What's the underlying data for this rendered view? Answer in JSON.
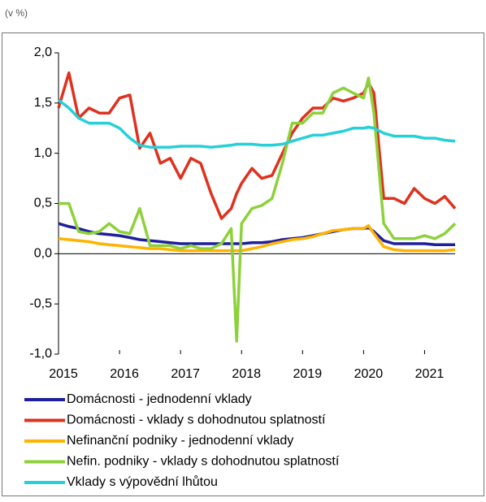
{
  "chart_data": {
    "type": "line",
    "unit_label": "(v %)",
    "x": [
      2015,
      2015.17,
      2015.33,
      2015.5,
      2015.67,
      2015.83,
      2016,
      2016.17,
      2016.33,
      2016.5,
      2016.67,
      2016.83,
      2017,
      2017.17,
      2017.33,
      2017.5,
      2017.67,
      2017.83,
      2017.92,
      2018,
      2018.17,
      2018.33,
      2018.5,
      2018.67,
      2018.83,
      2019,
      2019.17,
      2019.33,
      2019.5,
      2019.67,
      2019.83,
      2020,
      2020.08,
      2020.17,
      2020.33,
      2020.5,
      2020.67,
      2020.83,
      2021,
      2021.17,
      2021.33,
      2021.5
    ],
    "xlim": [
      2015,
      2021.5
    ],
    "xticks": [
      2015,
      2016,
      2017,
      2018,
      2019,
      2020,
      2021
    ],
    "ylim": [
      -1,
      2
    ],
    "yticks": [
      {
        "value": -1,
        "label": "-1,0"
      },
      {
        "value": -0.5,
        "label": "-0,5"
      },
      {
        "value": 0,
        "label": "0,0"
      },
      {
        "value": 0.5,
        "label": "0,5"
      },
      {
        "value": 1,
        "label": "1,0"
      },
      {
        "value": 1.5,
        "label": "1,5"
      },
      {
        "value": 2,
        "label": "2,0"
      }
    ],
    "grid": false,
    "legend": "bottom",
    "series": [
      {
        "name": "Domácnosti - jednodenní vklady",
        "color": "#1f1f9e",
        "values": [
          0.3,
          0.27,
          0.25,
          0.22,
          0.2,
          0.19,
          0.18,
          0.16,
          0.14,
          0.13,
          0.12,
          0.11,
          0.1,
          0.1,
          0.1,
          0.1,
          0.1,
          0.1,
          0.1,
          0.1,
          0.11,
          0.11,
          0.12,
          0.14,
          0.15,
          0.16,
          0.18,
          0.2,
          0.22,
          0.24,
          0.25,
          0.25,
          0.26,
          0.22,
          0.13,
          0.1,
          0.1,
          0.1,
          0.1,
          0.09,
          0.09,
          0.09
        ]
      },
      {
        "name": "Domácnosti - vklady s dohodnutou splatností",
        "color": "#e0301e",
        "values": [
          1.45,
          1.8,
          1.35,
          1.45,
          1.4,
          1.4,
          1.55,
          1.58,
          1.05,
          1.2,
          0.9,
          0.95,
          0.75,
          0.95,
          0.9,
          0.6,
          0.35,
          0.45,
          0.6,
          0.7,
          0.85,
          0.75,
          0.78,
          1.0,
          1.2,
          1.35,
          1.45,
          1.45,
          1.55,
          1.52,
          1.55,
          1.6,
          1.7,
          1.6,
          0.55,
          0.55,
          0.5,
          0.65,
          0.55,
          0.5,
          0.57,
          0.45
        ]
      },
      {
        "name": "Nefinanční podniky - jednodenní vklady",
        "color": "#ffb300",
        "values": [
          0.15,
          0.14,
          0.13,
          0.12,
          0.1,
          0.09,
          0.08,
          0.07,
          0.06,
          0.05,
          0.05,
          0.04,
          0.03,
          0.03,
          0.03,
          0.03,
          0.03,
          0.03,
          0.03,
          0.03,
          0.05,
          0.07,
          0.1,
          0.12,
          0.14,
          0.15,
          0.17,
          0.2,
          0.23,
          0.24,
          0.25,
          0.25,
          0.28,
          0.2,
          0.07,
          0.04,
          0.03,
          0.03,
          0.03,
          0.03,
          0.03,
          0.04
        ]
      },
      {
        "name": "Nefin. podniky - vklady s dohodnutou splatností",
        "color": "#8dd13a",
        "values": [
          0.5,
          0.5,
          0.22,
          0.2,
          0.22,
          0.3,
          0.22,
          0.2,
          0.45,
          0.08,
          0.08,
          0.08,
          0.05,
          0.08,
          0.05,
          0.05,
          0.1,
          0.25,
          -0.87,
          0.3,
          0.45,
          0.48,
          0.55,
          0.9,
          1.3,
          1.3,
          1.4,
          1.4,
          1.6,
          1.65,
          1.6,
          1.55,
          1.75,
          1.4,
          0.3,
          0.15,
          0.15,
          0.15,
          0.18,
          0.15,
          0.2,
          0.3
        ]
      },
      {
        "name": "Vklady s výpovědní lhůtou",
        "color": "#26d0d8",
        "values": [
          1.53,
          1.45,
          1.35,
          1.3,
          1.3,
          1.3,
          1.25,
          1.15,
          1.08,
          1.06,
          1.06,
          1.06,
          1.07,
          1.07,
          1.07,
          1.06,
          1.07,
          1.08,
          1.09,
          1.09,
          1.09,
          1.08,
          1.08,
          1.09,
          1.12,
          1.15,
          1.18,
          1.18,
          1.2,
          1.22,
          1.25,
          1.25,
          1.26,
          1.25,
          1.2,
          1.17,
          1.17,
          1.17,
          1.15,
          1.15,
          1.13,
          1.12
        ]
      }
    ]
  }
}
